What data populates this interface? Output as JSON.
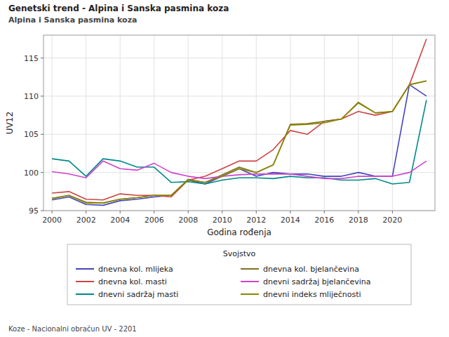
{
  "chart_data": {
    "type": "line",
    "title": "Genetski trend - Alpina i Sanska pasmina koza",
    "subtitle": "Alpina i Sanska pasmina koza",
    "x_label": "Godina rođenja",
    "y_label": "UV12",
    "legend_title": "Svojstvo",
    "annotations": [
      "Koze - Nacionalni obračun UV - 2201"
    ],
    "x": [
      2000,
      2001,
      2002,
      2003,
      2004,
      2005,
      2006,
      2007,
      2008,
      2009,
      2010,
      2011,
      2012,
      2013,
      2014,
      2015,
      2016,
      2017,
      2018,
      2019,
      2020,
      2021,
      2022
    ],
    "series": [
      {
        "name": "dnevna kol. mlijeka",
        "color": "#4444bb",
        "values": [
          96.4,
          96.8,
          95.8,
          95.7,
          96.3,
          96.5,
          96.8,
          97.0,
          99.0,
          98.5,
          99.5,
          100.5,
          99.5,
          100.0,
          99.8,
          99.8,
          99.5,
          99.5,
          100.0,
          99.5,
          99.5,
          111.5,
          110.0
        ]
      },
      {
        "name": "dnevna kol. masti",
        "color": "#cc4444",
        "values": [
          97.3,
          97.5,
          96.5,
          96.4,
          97.2,
          97.0,
          97.0,
          96.8,
          99.0,
          99.5,
          100.5,
          101.5,
          101.5,
          103.0,
          105.5,
          105.0,
          106.7,
          107.0,
          108.0,
          107.5,
          108.0,
          111.5,
          117.5
        ]
      },
      {
        "name": "dnevni sadržaj masti",
        "color": "#008888",
        "values": [
          101.8,
          101.5,
          99.5,
          101.8,
          101.5,
          100.7,
          100.7,
          98.7,
          98.8,
          98.5,
          99.0,
          99.3,
          99.3,
          99.2,
          99.5,
          99.3,
          99.3,
          99.0,
          99.0,
          99.2,
          98.5,
          98.7,
          109.5
        ]
      },
      {
        "name": "dnevna kol. bjelančevina",
        "color": "#807020",
        "values": [
          96.6,
          97.0,
          96.1,
          96.0,
          96.5,
          96.7,
          97.0,
          97.0,
          99.1,
          98.7,
          99.7,
          100.7,
          100.0,
          101.0,
          106.3,
          106.4,
          106.7,
          107.0,
          109.2,
          107.8,
          108.0,
          111.5,
          112.0
        ]
      },
      {
        "name": "dnevni sadržaj bjelančevina",
        "color": "#cc44cc",
        "values": [
          100.1,
          99.8,
          99.3,
          101.5,
          100.5,
          100.3,
          101.2,
          100.0,
          99.5,
          99.2,
          99.5,
          99.7,
          99.8,
          99.8,
          99.8,
          99.5,
          99.2,
          99.2,
          99.5,
          99.5,
          99.5,
          100.0,
          101.5
        ]
      },
      {
        "name": "dnevni indeks mliječnosti",
        "color": "#888800",
        "values": [
          96.6,
          97.0,
          96.0,
          96.0,
          96.5,
          96.7,
          97.0,
          97.0,
          99.0,
          98.7,
          99.5,
          100.5,
          100.0,
          101.0,
          106.2,
          106.3,
          106.5,
          107.0,
          109.1,
          107.8,
          108.0,
          111.5,
          112.0
        ]
      }
    ],
    "xlim": [
      1999.5,
      2022.5
    ],
    "xticks": [
      2000,
      2002,
      2004,
      2006,
      2008,
      2010,
      2012,
      2014,
      2016,
      2018,
      2020
    ],
    "ylim": [
      95,
      118
    ],
    "yticks": [
      95,
      100,
      105,
      110,
      115
    ],
    "grid": true,
    "legend": "bottom"
  }
}
